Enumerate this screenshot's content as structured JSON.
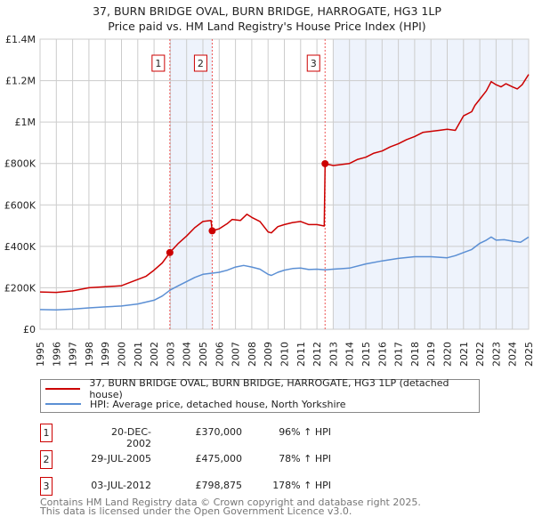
{
  "header": {
    "title": "37, BURN BRIDGE OVAL, BURN BRIDGE, HARROGATE, HG3 1LP",
    "subtitle": "Price paid vs. HM Land Registry's House Price Index (HPI)"
  },
  "legend": {
    "property": "37, BURN BRIDGE OVAL, BURN BRIDGE, HARROGATE, HG3 1LP (detached house)",
    "hpi": "HPI: Average price, detached house, North Yorkshire"
  },
  "sales": [
    {
      "num": "1",
      "date": "20-DEC-2002",
      "price": "£370,000",
      "hpi": "96% ↑ HPI"
    },
    {
      "num": "2",
      "date": "29-JUL-2005",
      "price": "£475,000",
      "hpi": "78% ↑ HPI"
    },
    {
      "num": "3",
      "date": "03-JUL-2012",
      "price": "£798,875",
      "hpi": "178% ↑ HPI"
    }
  ],
  "footer": {
    "line1": "Contains HM Land Registry data © Crown copyright and database right 2025.",
    "line2": "This data is licensed under the Open Government Licence v3.0."
  },
  "colors": {
    "property": "#cc0000",
    "hpi": "#5b8fd4",
    "shade": "#eef3fc",
    "grid": "#cccccc"
  },
  "chart_data": {
    "type": "line",
    "xlim": [
      1995,
      2025
    ],
    "ylim": [
      0,
      1400000
    ],
    "yticks": [
      {
        "v": 0,
        "label": "£0"
      },
      {
        "v": 200000,
        "label": "£200K"
      },
      {
        "v": 400000,
        "label": "£400K"
      },
      {
        "v": 600000,
        "label": "£600K"
      },
      {
        "v": 800000,
        "label": "£800K"
      },
      {
        "v": 1000000,
        "label": "£1M"
      },
      {
        "v": 1200000,
        "label": "£1.2M"
      },
      {
        "v": 1400000,
        "label": "£1.4M"
      }
    ],
    "xticks": [
      "1995",
      "1996",
      "1997",
      "1998",
      "1999",
      "2000",
      "2001",
      "2002",
      "2003",
      "2004",
      "2005",
      "2006",
      "2007",
      "2008",
      "2009",
      "2010",
      "2011",
      "2012",
      "2013",
      "2014",
      "2015",
      "2016",
      "2017",
      "2018",
      "2019",
      "2020",
      "2021",
      "2022",
      "2023",
      "2024",
      "2025"
    ],
    "markers": [
      {
        "label": "1",
        "x": 2002.97,
        "y": 370000
      },
      {
        "label": "2",
        "x": 2005.57,
        "y": 475000
      },
      {
        "label": "3",
        "x": 2012.5,
        "y": 798875
      }
    ],
    "shaded": [
      [
        2002.97,
        2005.57
      ],
      [
        2013.0,
        2025
      ]
    ],
    "series": [
      {
        "name": "property",
        "x": [
          1995,
          1996,
          1997,
          1998,
          1999,
          2000,
          2000.5,
          2001,
          2001.5,
          2002,
          2002.5,
          2002.97,
          2003.5,
          2004,
          2004.5,
          2005,
          2005.5,
          2005.57,
          2006,
          2006.5,
          2006.8,
          2007.3,
          2007.7,
          2008,
          2008.5,
          2009,
          2009.2,
          2009.6,
          2010,
          2010.5,
          2011,
          2011.5,
          2012,
          2012.45,
          2012.5,
          2013,
          2013.5,
          2014,
          2014.5,
          2015,
          2015.5,
          2016,
          2016.5,
          2017,
          2017.5,
          2018,
          2018.5,
          2019,
          2019.5,
          2020,
          2020.5,
          2021,
          2021.5,
          2021.7,
          2022,
          2022.4,
          2022.7,
          2023,
          2023.3,
          2023.6,
          2024,
          2024.3,
          2024.6,
          2025
        ],
        "y": [
          180000,
          178000,
          185000,
          200000,
          205000,
          210000,
          225000,
          240000,
          255000,
          285000,
          320000,
          370000,
          415000,
          450000,
          490000,
          520000,
          525000,
          475000,
          485000,
          510000,
          530000,
          525000,
          555000,
          540000,
          520000,
          470000,
          465000,
          495000,
          505000,
          515000,
          520000,
          505000,
          505000,
          498000,
          798875,
          790000,
          795000,
          800000,
          820000,
          830000,
          850000,
          860000,
          880000,
          895000,
          915000,
          930000,
          950000,
          955000,
          960000,
          965000,
          960000,
          1030000,
          1050000,
          1080000,
          1110000,
          1150000,
          1195000,
          1180000,
          1170000,
          1185000,
          1170000,
          1160000,
          1180000,
          1230000
        ]
      },
      {
        "name": "hpi",
        "x": [
          1995,
          1996,
          1997,
          1998,
          1999,
          2000,
          2001,
          2002,
          2002.5,
          2003,
          2003.5,
          2004,
          2004.5,
          2005,
          2005.5,
          2006,
          2006.5,
          2007,
          2007.5,
          2008,
          2008.5,
          2009,
          2009.2,
          2009.6,
          2010,
          2010.5,
          2011,
          2011.5,
          2012,
          2012.5,
          2013,
          2014,
          2015,
          2016,
          2017,
          2018,
          2019,
          2020,
          2020.5,
          2021,
          2021.5,
          2022,
          2022.4,
          2022.7,
          2023,
          2023.5,
          2024,
          2024.5,
          2025
        ],
        "y": [
          95000,
          93000,
          97000,
          103000,
          108000,
          112000,
          122000,
          140000,
          160000,
          190000,
          210000,
          230000,
          250000,
          265000,
          270000,
          275000,
          285000,
          300000,
          308000,
          300000,
          290000,
          265000,
          260000,
          275000,
          285000,
          293000,
          295000,
          288000,
          290000,
          287000,
          290000,
          295000,
          315000,
          330000,
          342000,
          350000,
          350000,
          345000,
          355000,
          370000,
          385000,
          415000,
          430000,
          445000,
          430000,
          432000,
          425000,
          420000,
          445000
        ]
      }
    ]
  }
}
